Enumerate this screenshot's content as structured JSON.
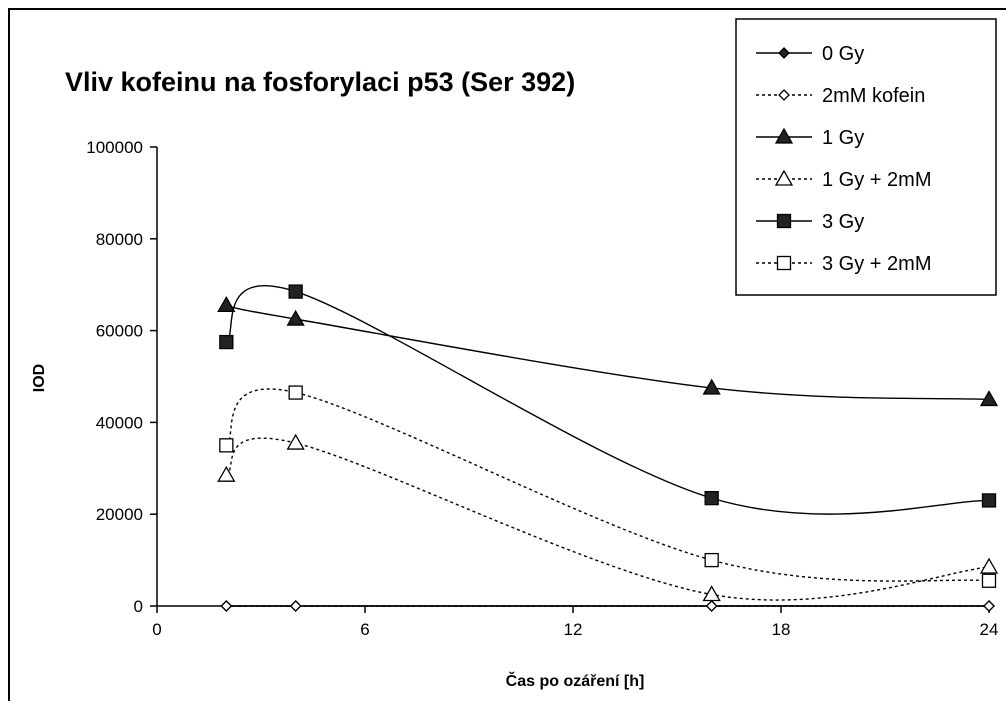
{
  "chart_data": {
    "type": "line",
    "title": "Vliv kofeinu na fosforylaci p53 (Ser 392)",
    "xlabel": "Čas po ozáření [h]",
    "ylabel": "IOD",
    "xlim": [
      0,
      24
    ],
    "ylim": [
      0,
      100000
    ],
    "xticks": [
      "0",
      "6",
      "12",
      "18",
      "24"
    ],
    "yticks": [
      "0",
      "20000",
      "40000",
      "60000",
      "80000",
      "100000"
    ],
    "grid": false,
    "legend_position": "top-right",
    "series": [
      {
        "name": "0 Gy",
        "line": "solid",
        "marker": "diamond",
        "filled": true,
        "points": [
          [
            2,
            0
          ],
          [
            4,
            0
          ],
          [
            16,
            0
          ],
          [
            24,
            0
          ]
        ]
      },
      {
        "name": "2mM kofein",
        "line": "dotted",
        "marker": "diamond",
        "filled": false,
        "points": [
          [
            2,
            0
          ],
          [
            4,
            0
          ],
          [
            16,
            0
          ],
          [
            24,
            0
          ]
        ]
      },
      {
        "name": "1 Gy",
        "line": "solid",
        "marker": "triangle",
        "filled": true,
        "points": [
          [
            2,
            65500
          ],
          [
            4,
            62500
          ],
          [
            16,
            47500
          ],
          [
            24,
            45000
          ]
        ]
      },
      {
        "name": "1 Gy + 2mM",
        "line": "dotted",
        "marker": "triangle",
        "filled": false,
        "points": [
          [
            2,
            28500
          ],
          [
            4,
            35500
          ],
          [
            16,
            2500
          ],
          [
            24,
            8500
          ]
        ]
      },
      {
        "name": "3 Gy",
        "line": "solid",
        "marker": "square",
        "filled": true,
        "points": [
          [
            2,
            57500
          ],
          [
            4,
            68500
          ],
          [
            16,
            23500
          ],
          [
            24,
            23000
          ]
        ]
      },
      {
        "name": "3 Gy + 2mM",
        "line": "dotted",
        "marker": "square",
        "filled": false,
        "points": [
          [
            2,
            35000
          ],
          [
            4,
            46500
          ],
          [
            16,
            10000
          ],
          [
            24,
            5500
          ]
        ]
      }
    ]
  }
}
